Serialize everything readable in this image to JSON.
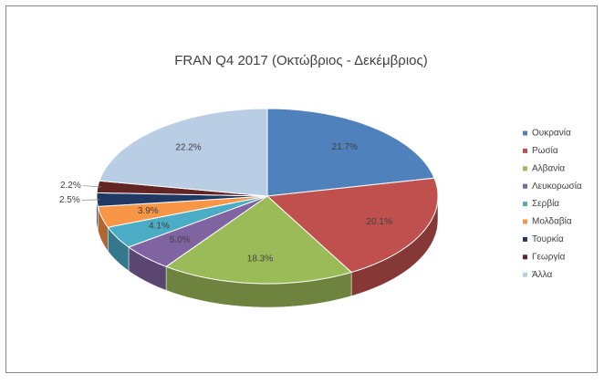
{
  "chart_data": {
    "type": "pie3d",
    "title": "FRAN Q4 2017 (Οκτώβριος - Δεκέμβριος)",
    "categories": [
      "Ουκρανία",
      "Ρωσία",
      "Αλβανία",
      "Λευκορωσία",
      "Σερβία",
      "Μολδαβία",
      "Τουρκία",
      "Γεωργία",
      "Άλλα"
    ],
    "values": [
      21.7,
      20.1,
      18.3,
      5.0,
      4.1,
      3.9,
      2.5,
      2.2,
      22.2
    ],
    "value_labels": [
      "21.7%",
      "20.1%",
      "18.3%",
      "5.0%",
      "4.1%",
      "3.9%",
      "2.5%",
      "2.2%",
      "22.2%"
    ],
    "colors": [
      "#4f81bd",
      "#c0504d",
      "#9bbb59",
      "#8064a2",
      "#4bacc6",
      "#f79646",
      "#1f3864",
      "#632523",
      "#b9cde5"
    ],
    "legend": "right"
  }
}
